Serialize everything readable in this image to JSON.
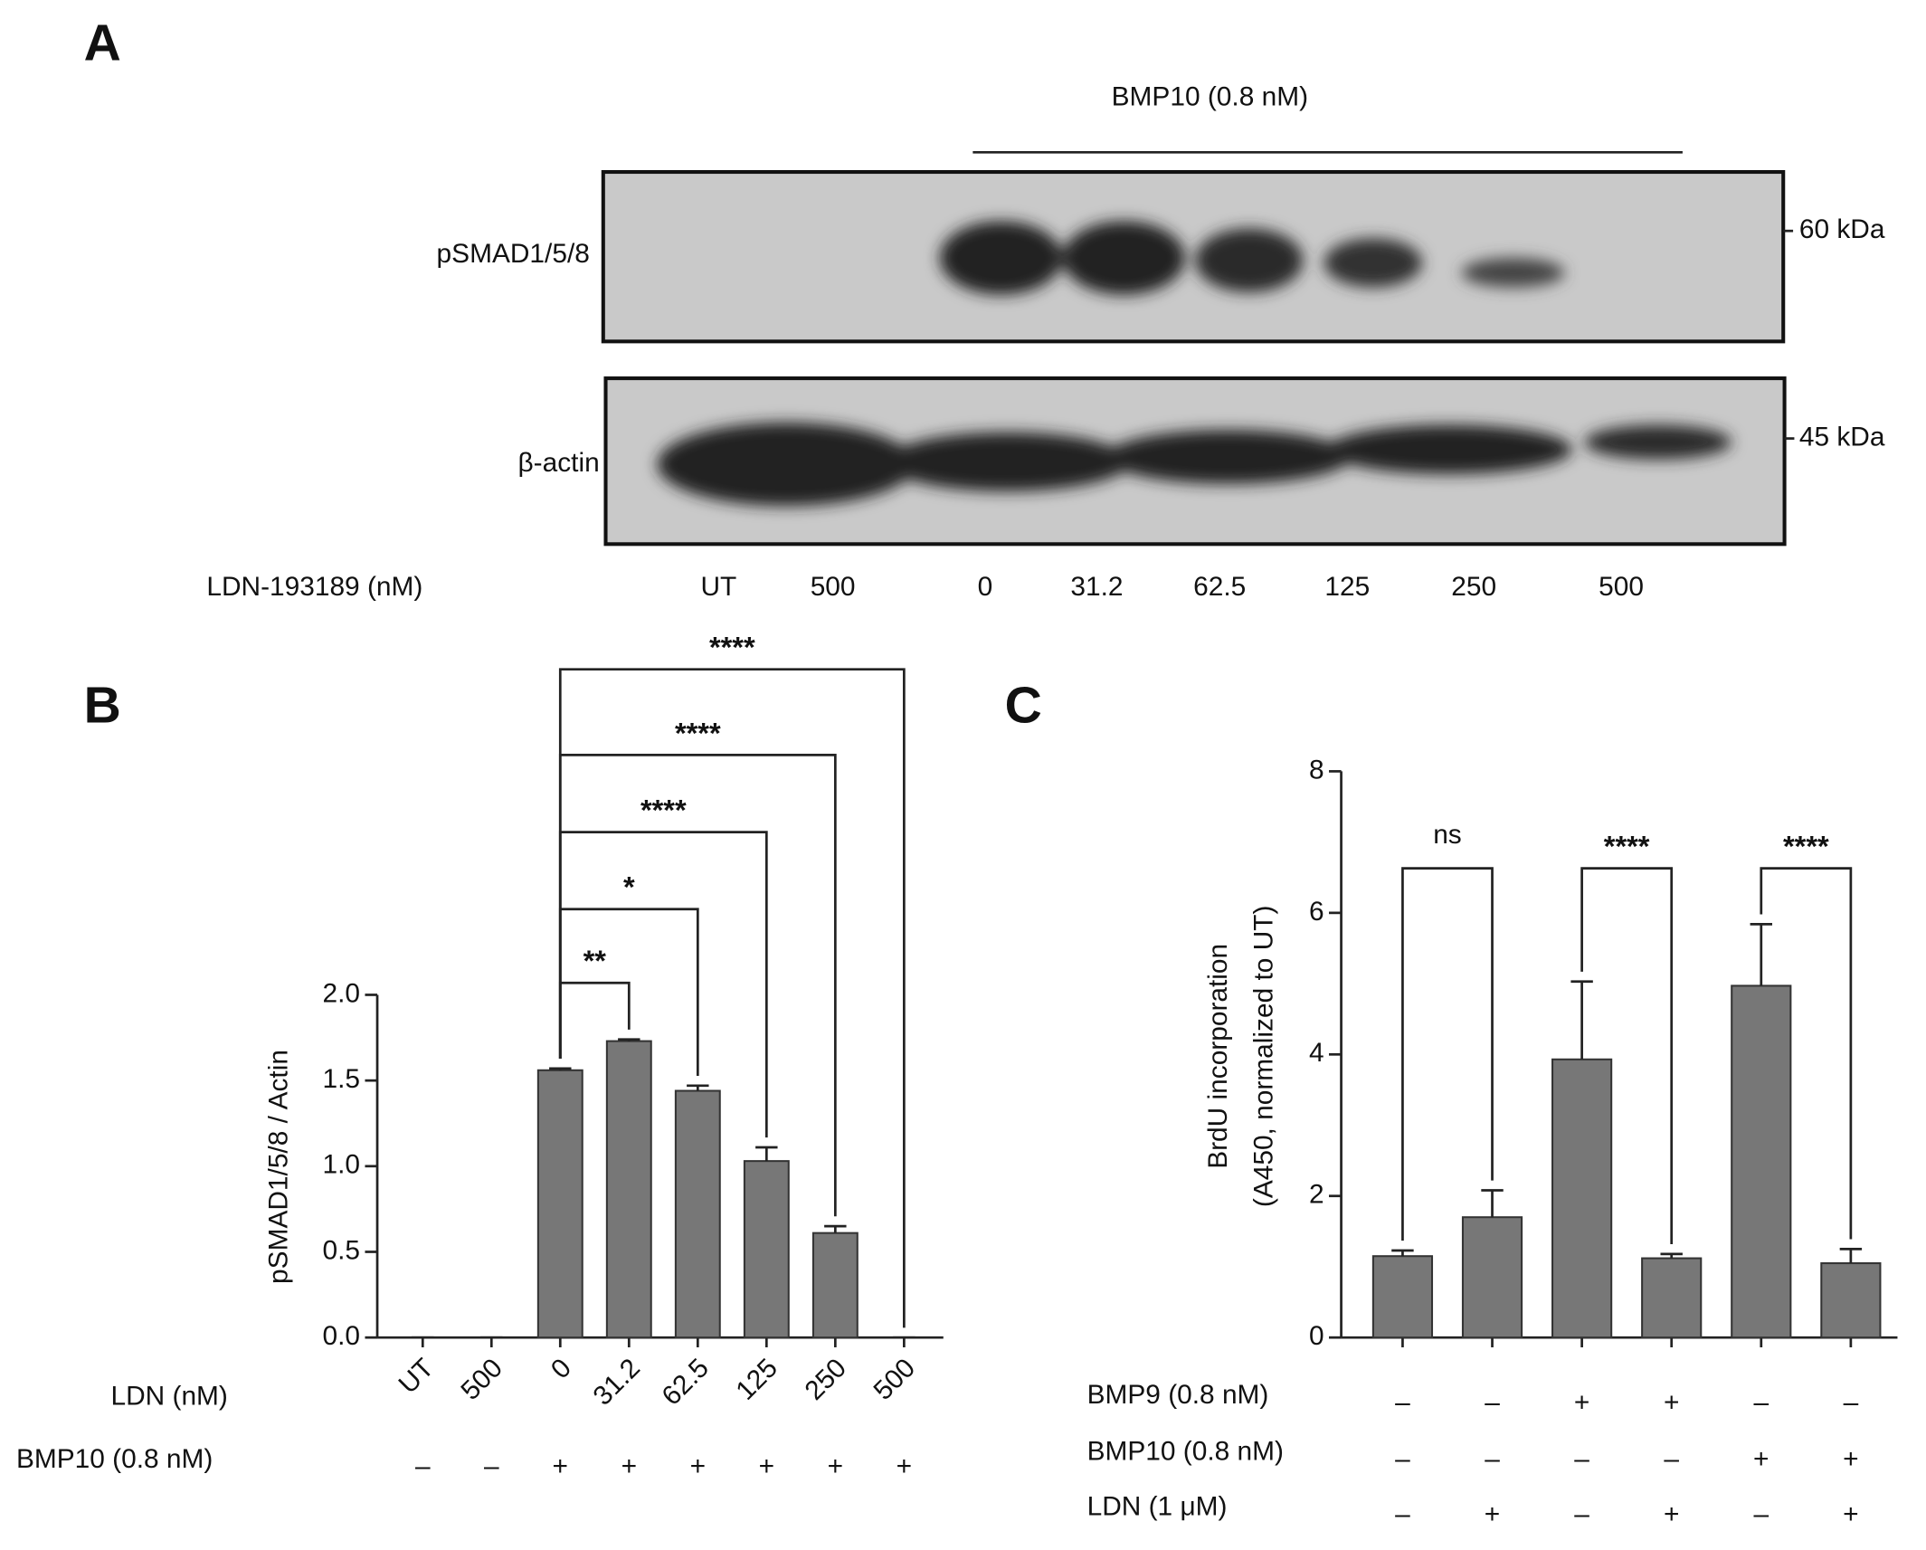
{
  "panel_labels": [
    "A",
    "B",
    "C"
  ],
  "blot": {
    "title": "BMP10 (0.8 nM)",
    "treatment_label": "LDN-193189 (nM)",
    "lanes": [
      "UT",
      "500",
      "0",
      "31.2",
      "62.5",
      "125",
      "250",
      "500"
    ],
    "rows": [
      {
        "label": "pSMAD1/5/8",
        "size": "60 kDa"
      },
      {
        "label": "β-actin",
        "size": "45 kDa"
      }
    ]
  },
  "chart_data": [
    {
      "type": "bar",
      "ylabel": [
        "pSMAD1/5/8 / Actin"
      ],
      "xlabel": "LDN (nM)",
      "categories": [
        "UT",
        "500",
        "0",
        "31.2",
        "62.5",
        "125",
        "250",
        "500"
      ],
      "values": [
        0,
        0,
        1.56,
        1.73,
        1.44,
        1.03,
        0.61,
        0
      ],
      "errors": [
        0,
        0,
        0.01,
        0.01,
        0.03,
        0.08,
        0.04,
        0
      ],
      "color": "#777777",
      "ylim": [
        0,
        2
      ],
      "yticks": [
        {
          "value": 0,
          "label": "0.0"
        },
        0.5,
        {
          "value": 1,
          "label": "1.0"
        },
        1.5,
        {
          "value": 2,
          "label": "2.0"
        }
      ],
      "rows": [
        {
          "label": "BMP10 (0.8 nM)",
          "values": [
            "–",
            "–",
            "+",
            "+",
            "+",
            "+",
            "+",
            "+"
          ]
        }
      ],
      "brackets": [
        {
          "from": 2,
          "to": 3,
          "y": 2.07,
          "label": "**"
        },
        {
          "from": 2,
          "to": 4,
          "y": 2.5,
          "label": "*"
        },
        {
          "from": 2,
          "to": 5,
          "y": 2.95,
          "label": "****"
        },
        {
          "from": 2,
          "to": 6,
          "y": 3.4,
          "label": "****"
        },
        {
          "from": 2,
          "to": 7,
          "y": 3.9,
          "label": "****"
        }
      ]
    },
    {
      "type": "bar",
      "ylabel": [
        "BrdU incorporation",
        "(A450, normalized to UT)"
      ],
      "values": [
        1.15,
        1.7,
        3.93,
        1.12,
        4.97,
        1.05
      ],
      "errors": [
        0.08,
        0.38,
        1.1,
        0.06,
        0.87,
        0.2
      ],
      "color": "#777777",
      "ylim": [
        0,
        8
      ],
      "yticks": [
        0,
        2,
        4,
        6,
        8
      ],
      "rows": [
        {
          "label": "BMP9  (0.8 nM)",
          "values": [
            "–",
            "–",
            "+",
            "+",
            "–",
            "–"
          ]
        },
        {
          "label": "BMP10 (0.8 nM)",
          "values": [
            "–",
            "–",
            "–",
            "–",
            "+",
            "+"
          ]
        },
        {
          "label": "LDN (1 μM)",
          "values": [
            "–",
            "+",
            "–",
            "+",
            "–",
            "+"
          ]
        }
      ],
      "brackets": [
        {
          "from": 0,
          "to": 1,
          "y": 6.63,
          "label": "ns"
        },
        {
          "from": 2,
          "to": 3,
          "y": 6.63,
          "label": "****"
        },
        {
          "from": 4,
          "to": 5,
          "y": 6.63,
          "label": "****"
        }
      ]
    }
  ]
}
